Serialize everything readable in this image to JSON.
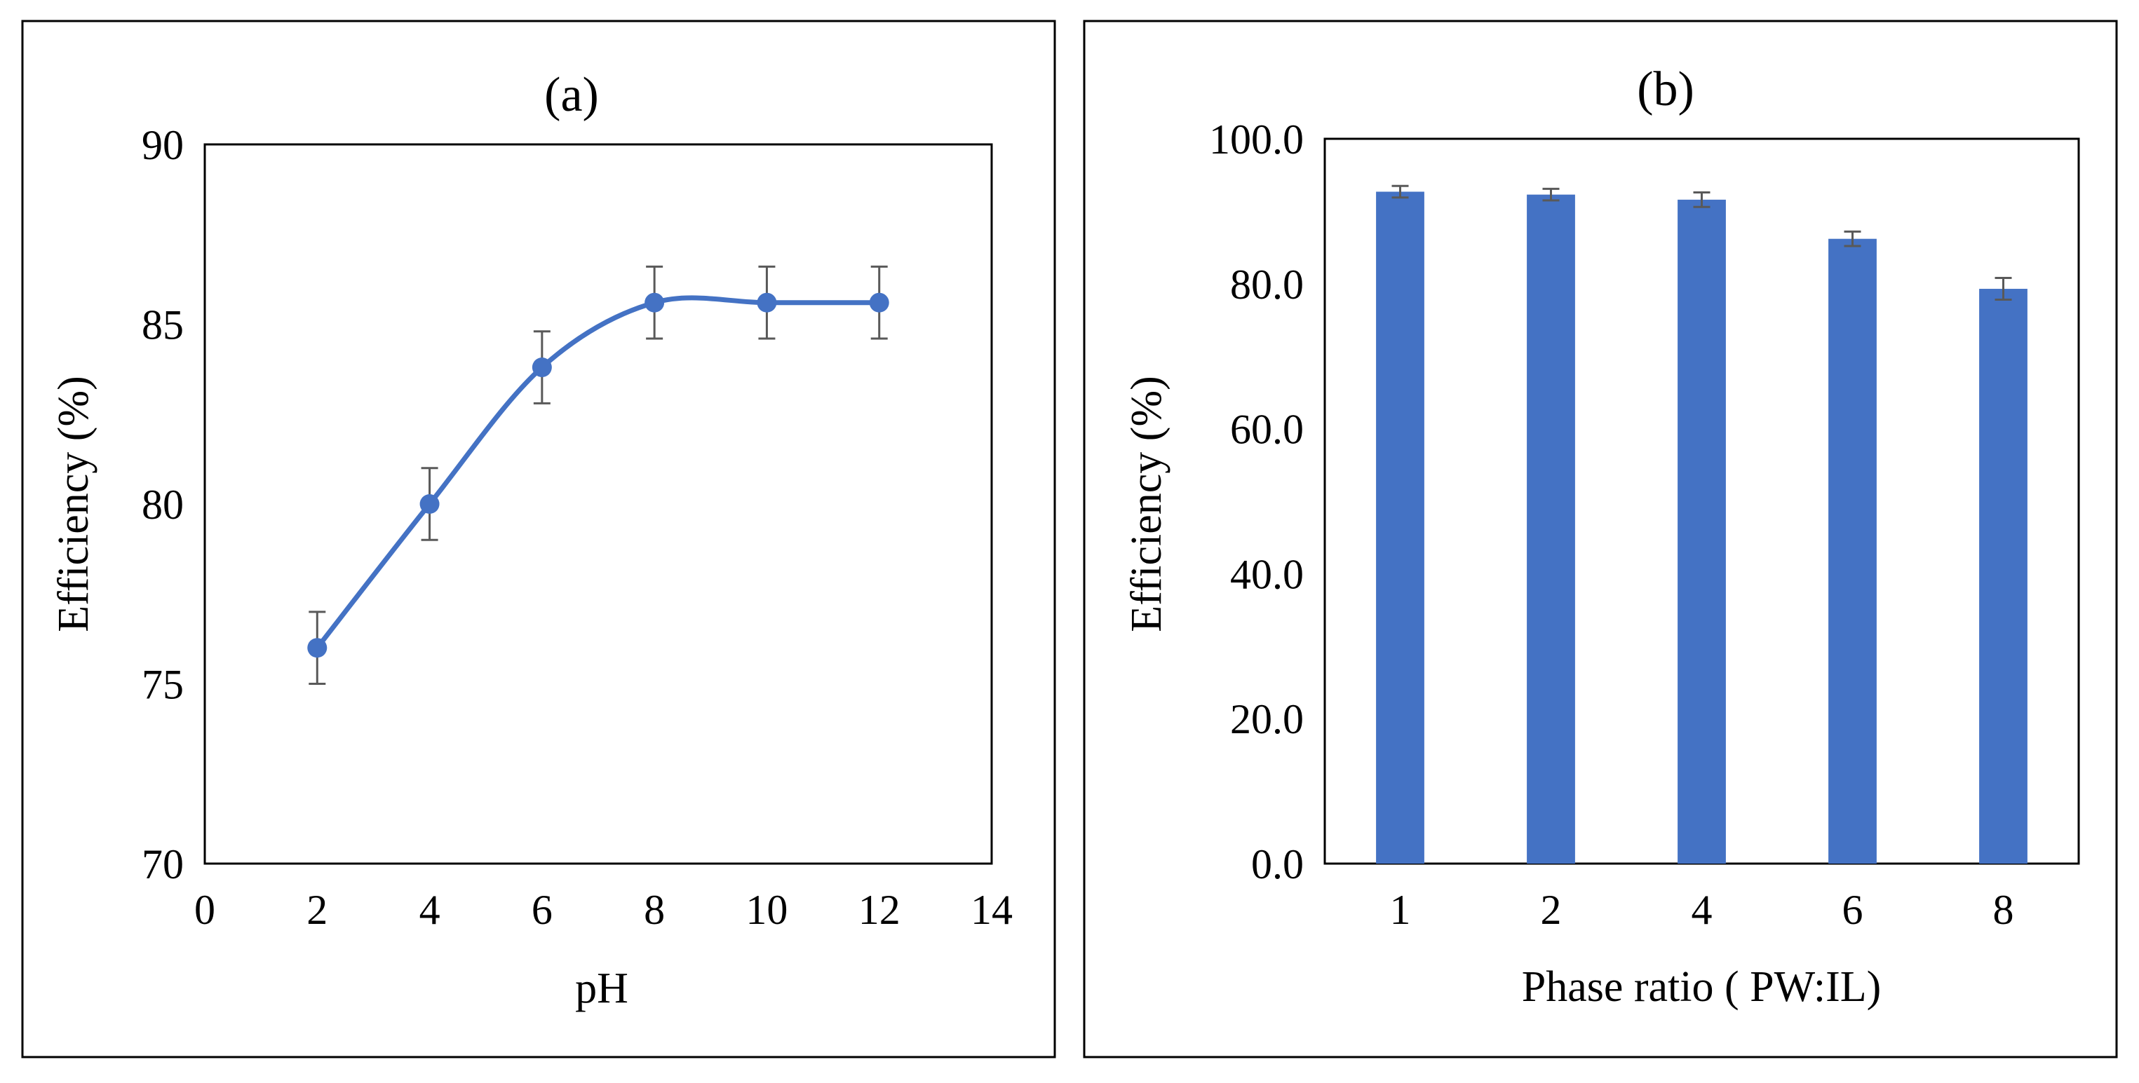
{
  "colors": {
    "series": "#4472C4",
    "error_bar": "#595959",
    "axis": "#000000",
    "frame": "#000000",
    "background": "#ffffff"
  },
  "chart_data": [
    {
      "panel": "(a)",
      "type": "scatter",
      "smooth_line": true,
      "title": "(a)",
      "xlabel": "pH",
      "ylabel": "Efficiency (%)",
      "xlim": [
        0,
        14
      ],
      "ylim": [
        70,
        90
      ],
      "x_ticks": [
        0,
        2,
        4,
        6,
        8,
        10,
        12,
        14
      ],
      "y_ticks": [
        70,
        75,
        80,
        85,
        90
      ],
      "x_tick_labels": [
        "0",
        "2",
        "4",
        "6",
        "8",
        "10",
        "12",
        "14"
      ],
      "y_tick_labels": [
        "70",
        "75",
        "80",
        "85",
        "90"
      ],
      "grid": false,
      "series": [
        {
          "name": "Efficiency",
          "x": [
            2,
            4,
            6,
            8,
            10,
            12
          ],
          "y": [
            76.0,
            80.0,
            83.8,
            85.6,
            85.6,
            85.6
          ],
          "error": [
            1.0,
            1.0,
            1.0,
            1.0,
            1.0,
            1.0
          ]
        }
      ]
    },
    {
      "panel": "(b)",
      "type": "bar",
      "title": "(b)",
      "xlabel": "Phase ratio ( PW:IL)",
      "ylabel": "Efficiency (%)",
      "categories": [
        "1",
        "2",
        "4",
        "6",
        "8"
      ],
      "ylim": [
        0,
        100
      ],
      "y_ticks": [
        0,
        20,
        40,
        60,
        80,
        100
      ],
      "y_tick_labels": [
        "0.0",
        "20.0",
        "40.0",
        "60.0",
        "80.0",
        "100.0"
      ],
      "grid": false,
      "series": [
        {
          "name": "Efficiency",
          "values": [
            92.7,
            92.3,
            91.6,
            86.2,
            79.3
          ],
          "error": [
            0.8,
            0.8,
            1.0,
            1.0,
            1.5
          ]
        }
      ]
    }
  ]
}
